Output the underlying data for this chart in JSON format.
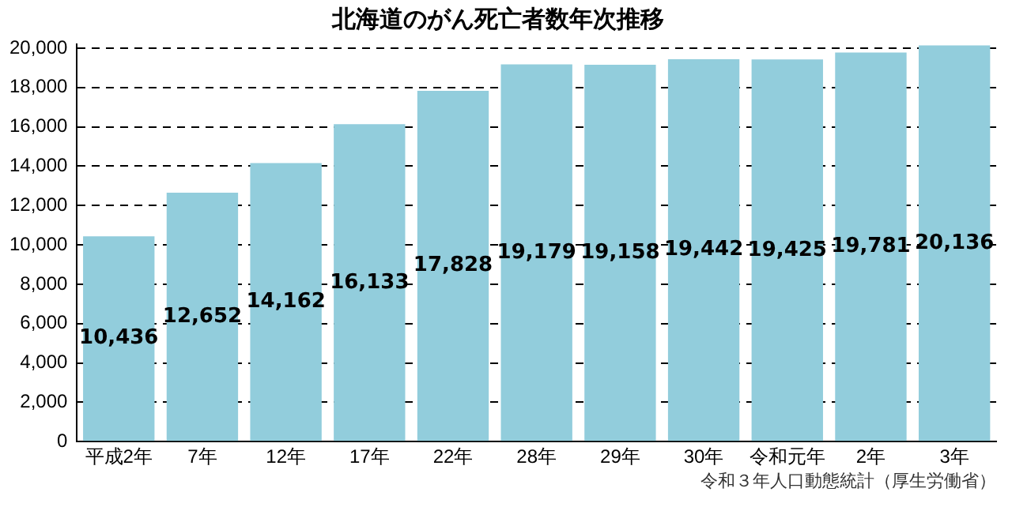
{
  "chart_data": {
    "type": "bar",
    "title": "北海道のがん死亡者数年次推移",
    "categories": [
      "平成2年",
      "7年",
      "12年",
      "17年",
      "22年",
      "28年",
      "29年",
      "30年",
      "令和元年",
      "2年",
      "3年"
    ],
    "values": [
      10436,
      12652,
      14162,
      16133,
      17828,
      19179,
      19158,
      19442,
      19425,
      19781,
      20136
    ],
    "value_labels": [
      "10,436",
      "12,652",
      "14,162",
      "16,133",
      "17,828",
      "19,179",
      "19,158",
      "19,442",
      "19,425",
      "19,781",
      "20,136"
    ],
    "color": "#92cddc",
    "ylim": [
      0,
      20200
    ],
    "yticks": [
      {
        "value": 0,
        "label": "0"
      },
      {
        "value": 2000,
        "label": "2,000"
      },
      {
        "value": 4000,
        "label": "4,000"
      },
      {
        "value": 6000,
        "label": "6,000"
      },
      {
        "value": 8000,
        "label": "8,000"
      },
      {
        "value": 10000,
        "label": "10,000"
      },
      {
        "value": 12000,
        "label": "12,000"
      },
      {
        "value": 14000,
        "label": "14,000"
      },
      {
        "value": 16000,
        "label": "16,000"
      },
      {
        "value": 18000,
        "label": "18,000"
      },
      {
        "value": 20000,
        "label": "20,000"
      }
    ],
    "grid": "y",
    "annotations": [
      "令和３年人口動態統計（厚生労働省）"
    ]
  }
}
